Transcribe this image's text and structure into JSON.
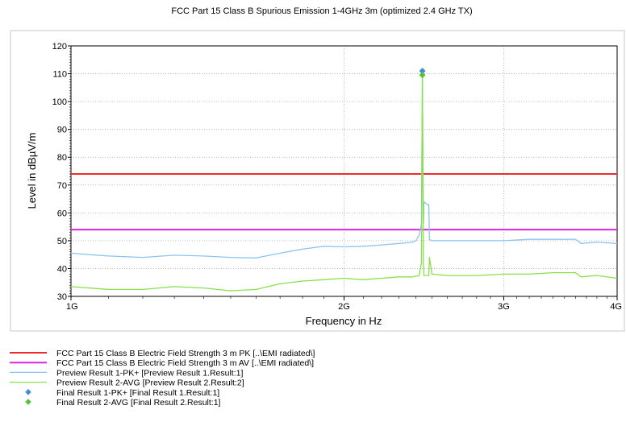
{
  "chart_data": {
    "type": "line",
    "title": "FCC Part 15 Class B Spurious Emission 1-4GHz 3m (optimized 2.4 GHz TX)",
    "xlabel": "Frequency in Hz",
    "ylabel": "Level in dBµV/m",
    "x_scale": "log",
    "xlim_ghz": [
      1,
      4
    ],
    "ylim": [
      30,
      120
    ],
    "grid": true,
    "legend_position": "bottom",
    "x_ticks": [
      {
        "value_ghz": 1,
        "label": "1G"
      },
      {
        "value_ghz": 2,
        "label": "2G"
      },
      {
        "value_ghz": 3,
        "label": "3G"
      },
      {
        "value_ghz": 4,
        "label": "4G"
      }
    ],
    "y_ticks": [
      {
        "value": 30,
        "label": "30"
      },
      {
        "value": 40,
        "label": "40"
      },
      {
        "value": 50,
        "label": "50"
      },
      {
        "value": 60,
        "label": "60"
      },
      {
        "value": 70,
        "label": "70"
      },
      {
        "value": 80,
        "label": "80"
      },
      {
        "value": 90,
        "label": "90"
      },
      {
        "value": 100,
        "label": "100"
      },
      {
        "value": 110,
        "label": "110"
      },
      {
        "value": 120,
        "label": "120"
      }
    ],
    "limit_lines": [
      {
        "label": "FCC Part 15 Class B Electric Field Strength 3 m PK  [..\\EMI radiated\\]",
        "value": 74,
        "color": "#ee2b2b"
      },
      {
        "label": "FCC Part 15 Class B Electric Field Strength 3 m AV  [..\\EMI radiated\\]",
        "value": 54,
        "color": "#dd22dd"
      }
    ],
    "series": [
      {
        "name": "Preview Result 1-PK+  [Preview Result 1.Result:1]",
        "color": "#8cc4ef",
        "x_ghz": [
          1.0,
          1.1,
          1.2,
          1.3,
          1.4,
          1.5,
          1.6,
          1.7,
          1.8,
          1.9,
          2.0,
          2.1,
          2.2,
          2.3,
          2.38,
          2.4,
          2.42,
          2.434,
          2.437,
          2.44,
          2.443,
          2.446,
          2.45,
          2.47,
          2.48,
          2.484,
          2.5,
          2.6,
          2.8,
          3.0,
          3.2,
          3.4,
          3.6,
          3.65,
          3.8,
          4.0
        ],
        "y": [
          45.5,
          44.5,
          44.0,
          44.8,
          44.5,
          44.0,
          43.8,
          45.5,
          47.0,
          48.0,
          47.8,
          48.0,
          48.5,
          49.0,
          49.5,
          50.0,
          52.0,
          56.0,
          80.0,
          110.0,
          80.0,
          56.0,
          64.0,
          63.0,
          63.0,
          50.5,
          50.0,
          50.0,
          50.0,
          50.0,
          50.5,
          50.5,
          50.5,
          49.0,
          49.5,
          49.0
        ]
      },
      {
        "name": "Preview Result 2-AVG  [Preview Result 2.Result:2]",
        "color": "#88e04a",
        "x_ghz": [
          1.0,
          1.1,
          1.2,
          1.3,
          1.4,
          1.5,
          1.6,
          1.7,
          1.8,
          1.9,
          2.0,
          2.1,
          2.2,
          2.3,
          2.38,
          2.42,
          2.434,
          2.437,
          2.44,
          2.443,
          2.446,
          2.45,
          2.48,
          2.484,
          2.5,
          2.6,
          2.8,
          3.0,
          3.2,
          3.4,
          3.6,
          3.65,
          3.8,
          4.0
        ],
        "y": [
          33.5,
          32.5,
          32.5,
          33.5,
          33.0,
          32.0,
          32.5,
          34.5,
          35.5,
          36.0,
          36.5,
          36.0,
          36.5,
          37.0,
          37.0,
          37.5,
          42.0,
          80.0,
          109.0,
          80.0,
          42.0,
          37.5,
          37.5,
          44.0,
          38.0,
          37.5,
          37.5,
          38.0,
          38.0,
          38.5,
          38.5,
          37.0,
          37.5,
          36.5
        ]
      }
    ],
    "markers": [
      {
        "name": "Final Result 1-PK+  [Final Result 1.Result:1]",
        "x_ghz": 2.44,
        "y": 111,
        "color": "#3f8fd4"
      },
      {
        "name": "Final Result 2-AVG  [Final Result 2.Result:1]",
        "x_ghz": 2.44,
        "y": 109.5,
        "color": "#5bc236"
      }
    ]
  }
}
